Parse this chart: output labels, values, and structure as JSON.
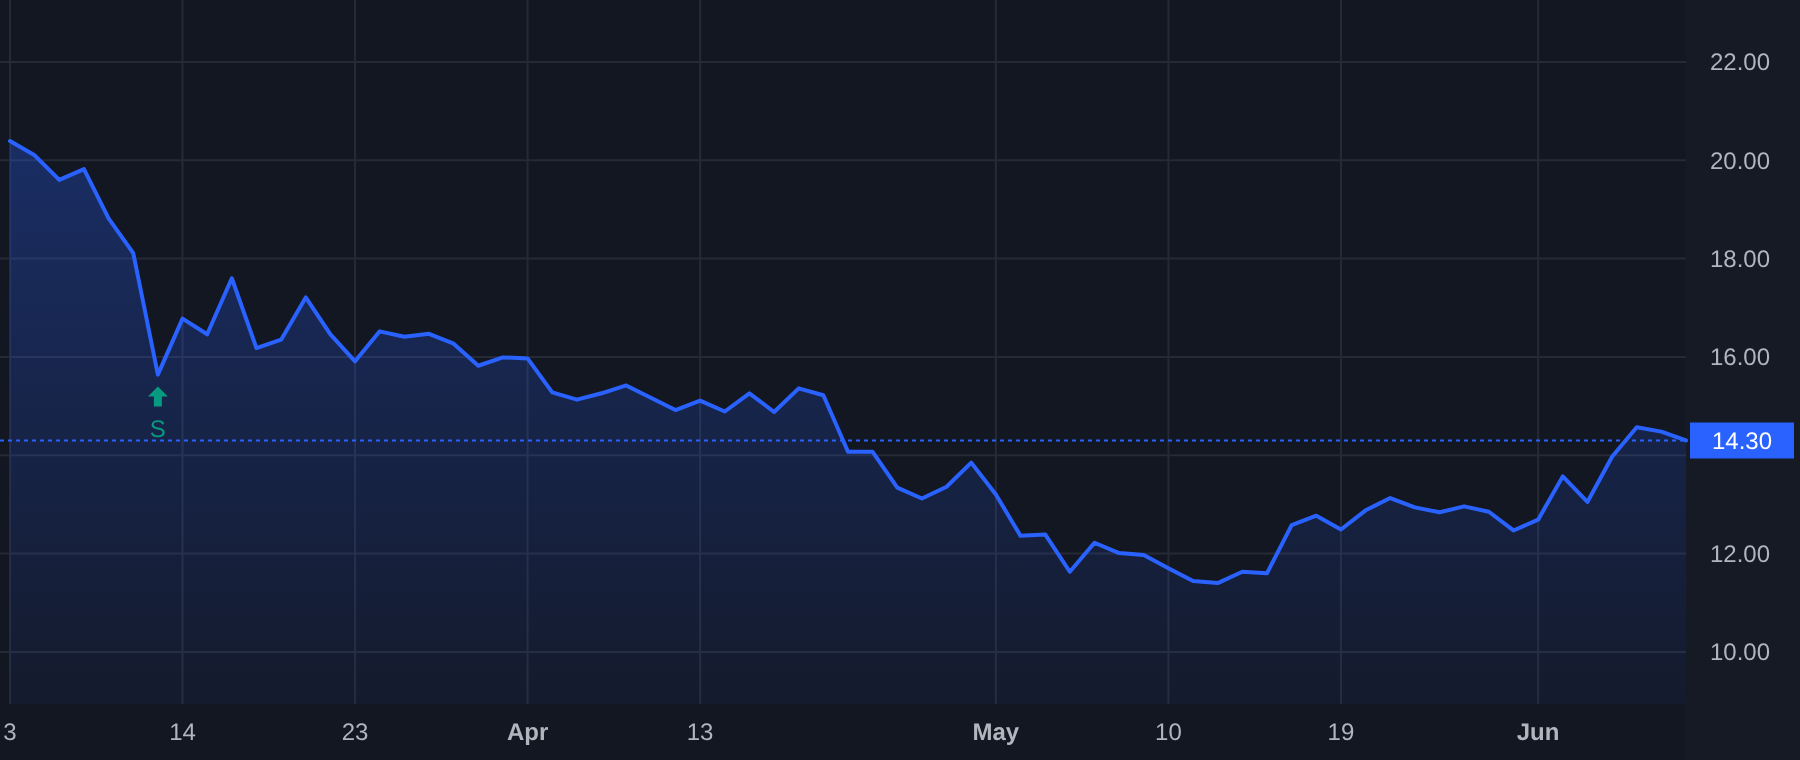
{
  "chart_data": {
    "type": "area",
    "categories": [
      "3",
      null,
      null,
      null,
      null,
      null,
      null,
      "14",
      null,
      null,
      null,
      null,
      null,
      null,
      "23",
      null,
      null,
      null,
      null,
      null,
      null,
      "Apr",
      null,
      null,
      null,
      null,
      null,
      null,
      "13",
      null,
      null,
      null,
      null,
      null,
      null,
      null,
      null,
      null,
      null,
      null,
      "May",
      null,
      null,
      null,
      null,
      null,
      null,
      "10",
      null,
      null,
      null,
      null,
      null,
      null,
      "19",
      null,
      null,
      null,
      null,
      null,
      null,
      null,
      "Jun",
      null,
      null,
      null,
      null,
      null,
      null
    ],
    "series": [
      {
        "color": "#2962ff",
        "values": [
          20.39,
          20.1,
          19.6,
          19.82,
          18.82,
          18.11,
          15.64,
          16.78,
          16.46,
          17.6,
          16.18,
          16.35,
          17.21,
          16.46,
          15.91,
          16.52,
          16.41,
          16.47,
          16.27,
          15.82,
          15.99,
          15.97,
          15.28,
          15.13,
          15.26,
          15.42,
          15.17,
          14.92,
          15.11,
          14.89,
          15.26,
          14.88,
          15.36,
          15.22,
          14.07,
          14.07,
          13.34,
          13.12,
          13.36,
          13.85,
          13.2,
          12.36,
          12.39,
          11.63,
          12.22,
          12.01,
          11.97,
          11.7,
          11.44,
          11.4,
          11.63,
          11.6,
          12.58,
          12.77,
          12.49,
          12.88,
          13.13,
          12.94,
          12.84,
          12.96,
          12.85,
          12.47,
          12.69,
          13.57,
          13.05,
          13.97,
          14.57,
          14.48,
          14.3
        ]
      }
    ],
    "ylim": [
      8.94,
      23.26
    ],
    "yticks": [
      {
        "value": 10,
        "label": "10.00"
      },
      {
        "value": 12,
        "label": "12.00"
      },
      {
        "value": 14,
        "label": null
      },
      {
        "value": 16,
        "label": "16.00"
      },
      {
        "value": 18,
        "label": "18.00"
      },
      {
        "value": 20,
        "label": "20.00"
      },
      {
        "value": 22,
        "label": "22.00"
      }
    ],
    "grid": true,
    "ref_lines": [
      {
        "axis": "y",
        "value": 14.3,
        "label": "14.30",
        "color": "#2962ff",
        "line_style": "dotted"
      }
    ],
    "annotations": [
      {
        "text": "S",
        "y": 15.64
      }
    ]
  }
}
